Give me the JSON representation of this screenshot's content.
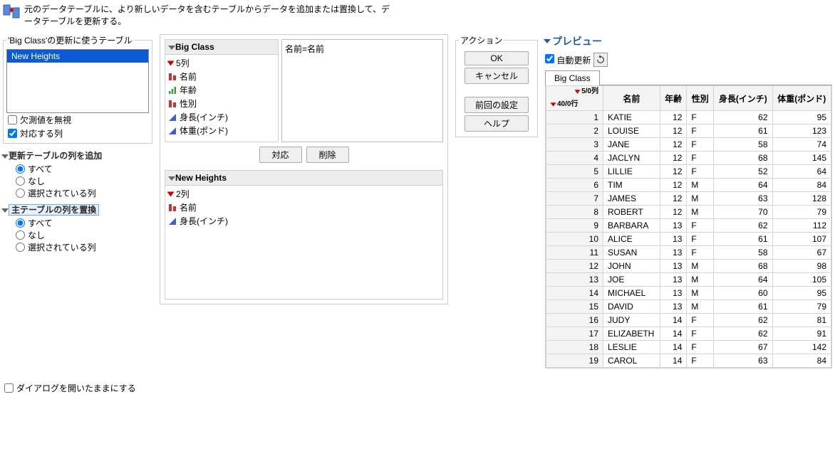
{
  "description": "元のデータテーブルに、より新しいデータを含むテーブルからデータを追加または置換して、データテーブルを更新する。",
  "leftPanel": {
    "sourceFieldset": "'Big Class'の更新に使うテーブル",
    "listItems": [
      "New Heights"
    ],
    "ignoreMissing": "欠測値を無視",
    "matchCols": "対応する列",
    "addColsHeader": "更新テーブルの列を追加",
    "replaceColsHeader": "主テーブルの列を置換",
    "radio": {
      "all": "すべて",
      "none": "なし",
      "selected": "選択されている列"
    }
  },
  "middle": {
    "bigClassTitle": "Big Class",
    "bigClassCount": "5列",
    "bigClassCols": [
      {
        "name": "名前",
        "type": "nominal"
      },
      {
        "name": "年齢",
        "type": "ordinal"
      },
      {
        "name": "性別",
        "type": "nominal"
      },
      {
        "name": "身長(インチ)",
        "type": "continuous"
      },
      {
        "name": "体重(ポンド)",
        "type": "continuous"
      }
    ],
    "matchText": "名前=名前",
    "matchBtn": "対応",
    "deleteBtn": "削除",
    "newHeightsTitle": "New Heights",
    "newHeightsCount": "2列",
    "newHeightsCols": [
      {
        "name": "名前",
        "type": "nominal"
      },
      {
        "name": "身長(インチ)",
        "type": "continuous"
      }
    ]
  },
  "actions": {
    "title": "アクション",
    "ok": "OK",
    "cancel": "キャンセル",
    "recall": "前回の設定",
    "help": "ヘルプ"
  },
  "preview": {
    "title": "プレビュー",
    "autoUpdate": "自動更新",
    "tabLabel": "Big Class",
    "cornerTop": "5/0列",
    "cornerBottom": "40/0行",
    "headers": [
      "名前",
      "年齢",
      "性別",
      "身長(インチ)",
      "体重(ポンド)"
    ],
    "rows": [
      [
        1,
        "KATIE",
        12,
        "F",
        62,
        95
      ],
      [
        2,
        "LOUISE",
        12,
        "F",
        61,
        123
      ],
      [
        3,
        "JANE",
        12,
        "F",
        58,
        74
      ],
      [
        4,
        "JACLYN",
        12,
        "F",
        68,
        145
      ],
      [
        5,
        "LILLIE",
        12,
        "F",
        52,
        64
      ],
      [
        6,
        "TIM",
        12,
        "M",
        64,
        84
      ],
      [
        7,
        "JAMES",
        12,
        "M",
        63,
        128
      ],
      [
        8,
        "ROBERT",
        12,
        "M",
        70,
        79
      ],
      [
        9,
        "BARBARA",
        13,
        "F",
        62,
        112
      ],
      [
        10,
        "ALICE",
        13,
        "F",
        61,
        107
      ],
      [
        11,
        "SUSAN",
        13,
        "F",
        58,
        67
      ],
      [
        12,
        "JOHN",
        13,
        "M",
        68,
        98
      ],
      [
        13,
        "JOE",
        13,
        "M",
        64,
        105
      ],
      [
        14,
        "MICHAEL",
        13,
        "M",
        60,
        95
      ],
      [
        15,
        "DAVID",
        13,
        "M",
        61,
        79
      ],
      [
        16,
        "JUDY",
        14,
        "F",
        62,
        81
      ],
      [
        17,
        "ELIZABETH",
        14,
        "F",
        62,
        91
      ],
      [
        18,
        "LESLIE",
        14,
        "F",
        67,
        142
      ],
      [
        19,
        "CAROL",
        14,
        "F",
        63,
        84
      ]
    ]
  },
  "keepOpen": "ダイアログを開いたままにする",
  "colors": {
    "nominal": "#c83232",
    "ordinal": "#3aa03a",
    "continuous": "#3a5fd9"
  }
}
